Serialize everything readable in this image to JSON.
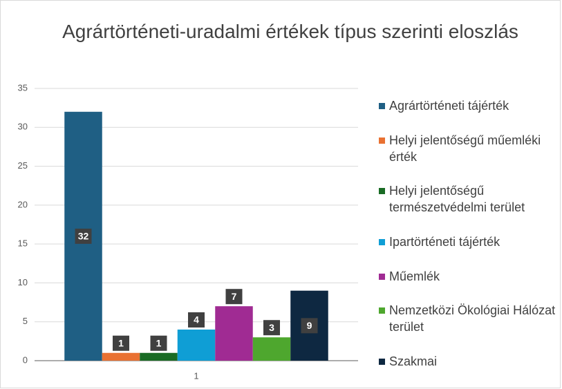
{
  "chart_data": {
    "type": "bar",
    "title": "Agrártörténeti-uradalmi értékek típus szerinti eloszlás",
    "categories": [
      "1"
    ],
    "series": [
      {
        "name": "Agrártörténeti tájérték",
        "color": "#1f5f84",
        "values": [
          32
        ]
      },
      {
        "name": "Helyi jelentőségű műemléki érték",
        "color": "#e97132",
        "values": [
          1
        ]
      },
      {
        "name": "Helyi jelentőségű természetvédelmi terület",
        "color": "#196b24",
        "values": [
          1
        ]
      },
      {
        "name": "Ipartörténeti tájérték",
        "color": "#0f9ed5",
        "values": [
          4
        ]
      },
      {
        "name": "Műemlék",
        "color": "#a02b93",
        "values": [
          7
        ]
      },
      {
        "name": "Nemzetközi Ökológiai Hálózat terület",
        "color": "#4ea72e",
        "values": [
          3
        ]
      },
      {
        "name": "Szakmai",
        "color": "#0e2841",
        "values": [
          9
        ]
      }
    ],
    "ylim": [
      0,
      35
    ],
    "yticks": [
      0,
      5,
      10,
      15,
      20,
      25,
      30,
      35
    ],
    "grid": true,
    "legend": "right"
  }
}
